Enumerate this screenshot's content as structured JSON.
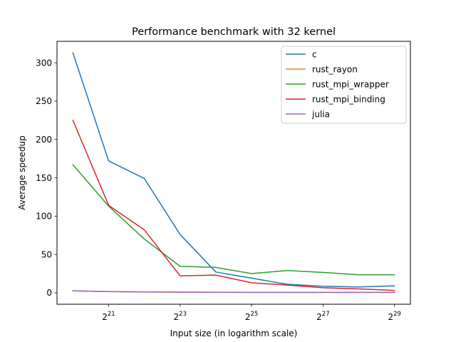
{
  "chart_data": {
    "type": "line",
    "title": "Performance benchmark with 32 kernel",
    "xlabel": "Input size (in logarithm scale)",
    "ylabel": "Average speedup",
    "x_scale": "log2",
    "x": [
      1048576,
      2097152,
      4194304,
      8388608,
      16777216,
      33554432,
      67108864,
      134217728,
      268435456,
      536870912
    ],
    "xlim": [
      1048576,
      536870912
    ],
    "ylim": [
      -15,
      328
    ],
    "x_ticks": [
      {
        "value": 2097152,
        "base": "2",
        "exp": "21"
      },
      {
        "value": 8388608,
        "base": "2",
        "exp": "23"
      },
      {
        "value": 33554432,
        "base": "2",
        "exp": "25"
      },
      {
        "value": 134217728,
        "base": "2",
        "exp": "27"
      },
      {
        "value": 536870912,
        "base": "2",
        "exp": "29"
      }
    ],
    "y_ticks": [
      {
        "value": 0,
        "label": "0"
      },
      {
        "value": 50,
        "label": "50"
      },
      {
        "value": 100,
        "label": "100"
      },
      {
        "value": 150,
        "label": "150"
      },
      {
        "value": 200,
        "label": "200"
      },
      {
        "value": 250,
        "label": "250"
      },
      {
        "value": 300,
        "label": "300"
      }
    ],
    "grid": false,
    "legend_position": "top-right",
    "series": [
      {
        "name": "c",
        "color": "#1f77b4",
        "values": [
          313,
          172,
          149,
          76,
          27,
          19,
          11,
          8.5,
          7.5,
          9
        ]
      },
      {
        "name": "rust_rayon",
        "color": "#ff7f0e",
        "values": [
          2.5,
          1.5,
          1.0,
          0.8,
          0.6,
          0.5,
          0.5,
          0.5,
          0.5,
          0.5
        ]
      },
      {
        "name": "rust_mpi_wrapper",
        "color": "#2ca02c",
        "values": [
          167,
          113,
          70,
          34.5,
          33,
          25,
          29,
          26.5,
          23.5,
          23.5
        ]
      },
      {
        "name": "rust_mpi_binding",
        "color": "#d62728",
        "values": [
          225,
          114,
          82,
          22,
          23,
          13,
          10,
          6.5,
          5,
          3
        ]
      },
      {
        "name": "julia",
        "color": "#9467bd",
        "values": [
          2.5,
          1.5,
          1.0,
          0.8,
          0.6,
          0.5,
          0.5,
          0.5,
          0.5,
          0.5
        ]
      }
    ]
  }
}
